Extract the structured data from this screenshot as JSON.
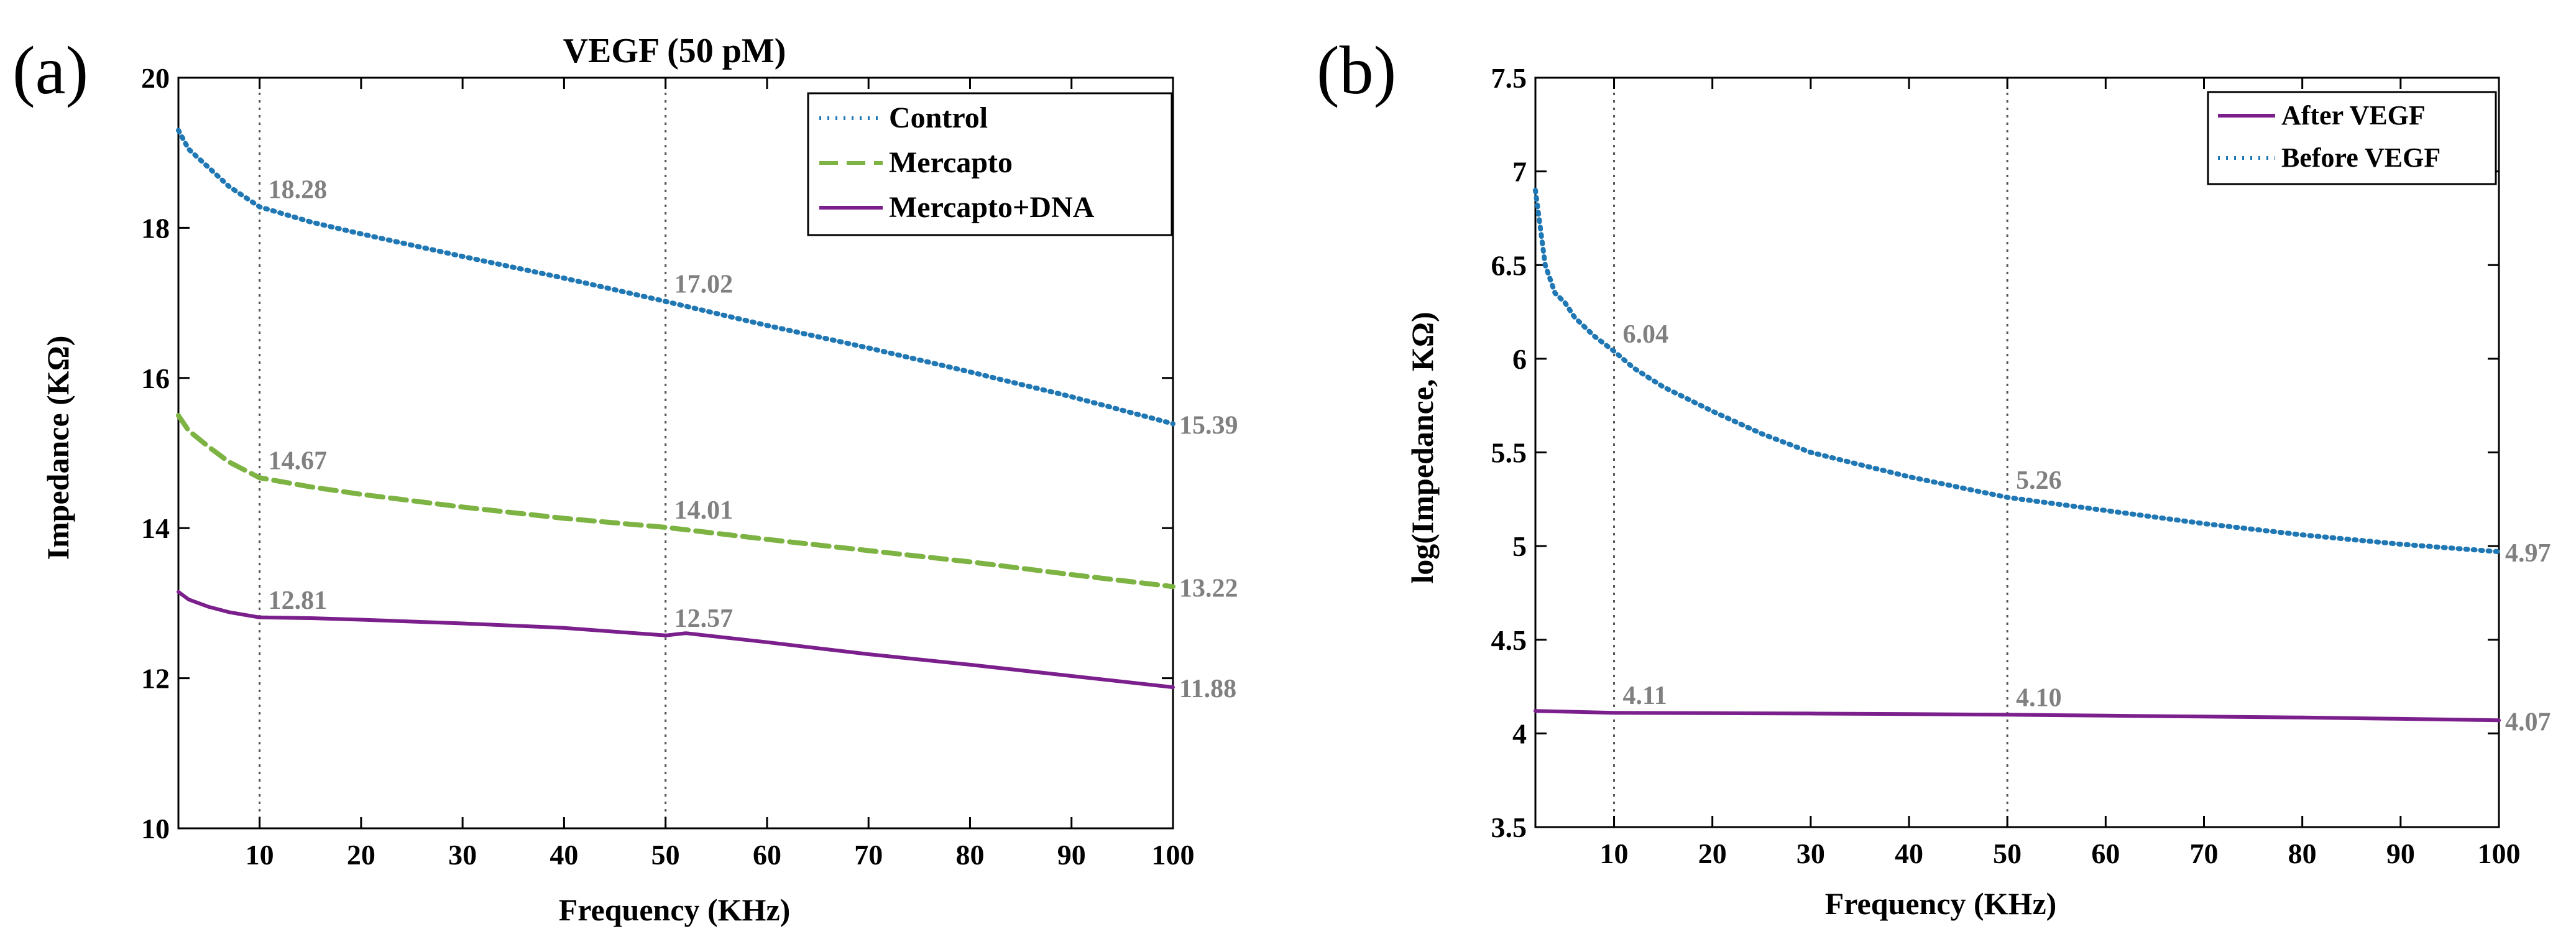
{
  "panel_a": {
    "letter": "(a)",
    "chart_data": {
      "type": "line",
      "title": "VEGF (50 pM)",
      "xlabel": "Frequency (KHz)",
      "ylabel": "Impedance (KΩ)",
      "xlim": [
        2,
        100
      ],
      "ylim": [
        10,
        20
      ],
      "xticks": [
        10,
        20,
        30,
        40,
        50,
        60,
        70,
        80,
        90,
        100
      ],
      "yticks": [
        10,
        12,
        14,
        16,
        18,
        20
      ],
      "grid": false,
      "legend_position": "top-right",
      "vlines": [
        10,
        50
      ],
      "series": [
        {
          "name": "Control",
          "color": "#1f77b4",
          "style": "dotted",
          "x": [
            2,
            3,
            5,
            7,
            10,
            15,
            20,
            30,
            40,
            50,
            60,
            70,
            80,
            90,
            100
          ],
          "y": [
            19.3,
            19.05,
            18.8,
            18.55,
            18.28,
            18.08,
            17.92,
            17.62,
            17.33,
            17.02,
            16.7,
            16.4,
            16.08,
            15.75,
            15.39
          ]
        },
        {
          "name": "Mercapto",
          "color": "#7cb342",
          "style": "dashed",
          "x": [
            2,
            3,
            5,
            7,
            10,
            15,
            20,
            30,
            40,
            50,
            60,
            70,
            80,
            90,
            100
          ],
          "y": [
            15.5,
            15.3,
            15.08,
            14.88,
            14.67,
            14.55,
            14.45,
            14.28,
            14.13,
            14.01,
            13.85,
            13.7,
            13.55,
            13.38,
            13.22
          ]
        },
        {
          "name": "Mercapto+DNA",
          "color": "#7b1f8c",
          "style": "solid",
          "x": [
            2,
            3,
            5,
            7,
            10,
            15,
            20,
            30,
            40,
            50,
            52,
            60,
            70,
            80,
            90,
            100
          ],
          "y": [
            13.15,
            13.05,
            12.95,
            12.88,
            12.81,
            12.8,
            12.78,
            12.73,
            12.67,
            12.57,
            12.6,
            12.48,
            12.32,
            12.18,
            12.03,
            11.88
          ]
        }
      ],
      "annotations": [
        {
          "x": 10,
          "y": 18.28,
          "text": "18.28"
        },
        {
          "x": 50,
          "y": 17.02,
          "text": "17.02"
        },
        {
          "x": 100,
          "y": 15.39,
          "text": "15.39"
        },
        {
          "x": 10,
          "y": 14.67,
          "text": "14.67"
        },
        {
          "x": 50,
          "y": 14.01,
          "text": "14.01"
        },
        {
          "x": 100,
          "y": 13.22,
          "text": "13.22"
        },
        {
          "x": 10,
          "y": 12.81,
          "text": "12.81"
        },
        {
          "x": 50,
          "y": 12.57,
          "text": "12.57"
        },
        {
          "x": 100,
          "y": 11.88,
          "text": "11.88"
        }
      ]
    }
  },
  "panel_b": {
    "letter": "(b)",
    "chart_data": {
      "type": "line",
      "title": "",
      "xlabel": "Frequency (KHz)",
      "ylabel": "log(Impedance, KΩ)",
      "xlim": [
        2,
        100
      ],
      "ylim": [
        3.5,
        7.5
      ],
      "xticks": [
        10,
        20,
        30,
        40,
        50,
        60,
        70,
        80,
        90,
        100
      ],
      "yticks": [
        3.5,
        4,
        4.5,
        5,
        5.5,
        6,
        6.5,
        7,
        7.5
      ],
      "grid": false,
      "legend_position": "top-right",
      "vlines": [
        10,
        50
      ],
      "series": [
        {
          "name": "After VEGF",
          "color": "#7b1f8c",
          "style": "solid",
          "x": [
            2,
            10,
            20,
            30,
            40,
            50,
            60,
            70,
            80,
            90,
            100
          ],
          "y": [
            4.12,
            4.11,
            4.108,
            4.106,
            4.103,
            4.1,
            4.095,
            4.09,
            4.085,
            4.078,
            4.07
          ]
        },
        {
          "name": "Before VEGF",
          "color": "#1f77b4",
          "style": "dotted",
          "x": [
            2,
            3,
            4,
            5,
            6,
            8,
            10,
            12,
            15,
            20,
            25,
            30,
            40,
            50,
            60,
            70,
            80,
            90,
            100
          ],
          "y": [
            6.9,
            6.5,
            6.35,
            6.3,
            6.22,
            6.12,
            6.04,
            5.95,
            5.85,
            5.72,
            5.6,
            5.5,
            5.37,
            5.26,
            5.19,
            5.12,
            5.06,
            5.01,
            4.97
          ]
        }
      ],
      "annotations": [
        {
          "x": 10,
          "y": 6.04,
          "text": "6.04"
        },
        {
          "x": 50,
          "y": 5.26,
          "text": "5.26"
        },
        {
          "x": 100,
          "y": 4.97,
          "text": "4.97"
        },
        {
          "x": 10,
          "y": 4.11,
          "text": "4.11"
        },
        {
          "x": 50,
          "y": 4.1,
          "text": "4.10"
        },
        {
          "x": 100,
          "y": 4.07,
          "text": "4.07"
        }
      ]
    }
  }
}
